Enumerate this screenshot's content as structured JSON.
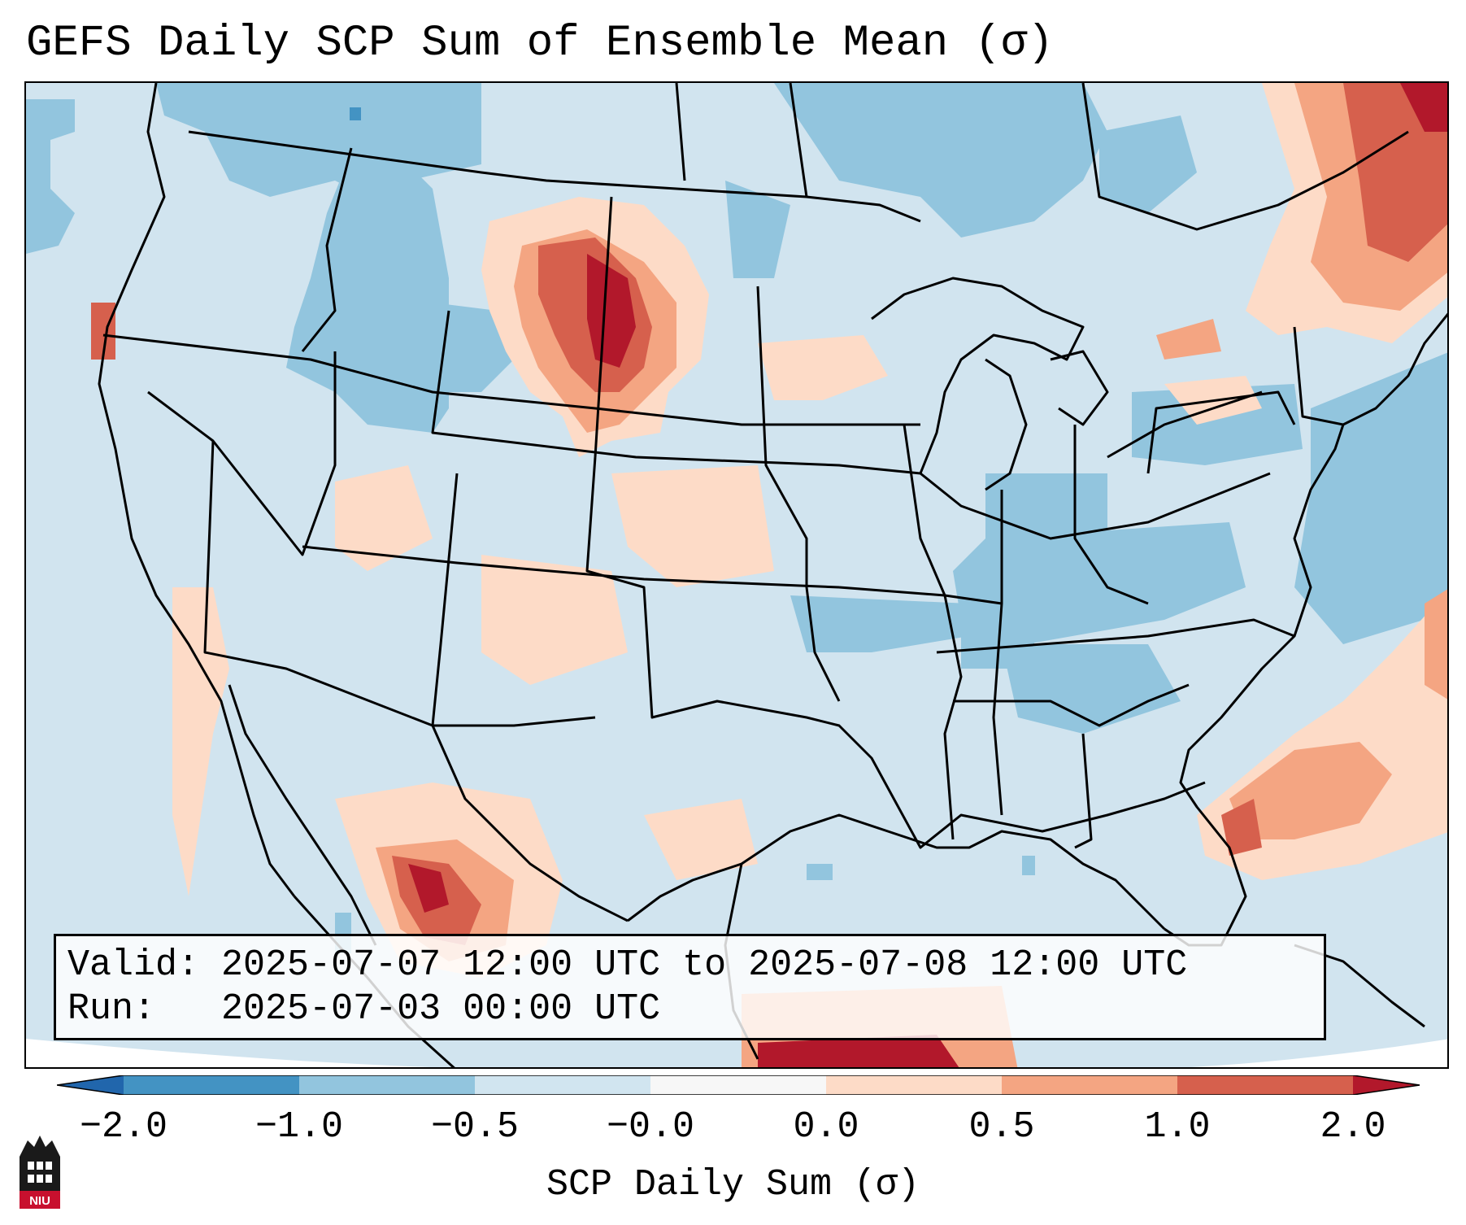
{
  "map": {
    "title": "GEFS Daily SCP Sum of Ensemble Mean (σ)",
    "valid_label": "Valid:",
    "valid_range": "2025-07-07 12:00 UTC to 2025-07-08 12:00 UTC",
    "run_label": "Run:",
    "run_time": "2025-07-03 00:00 UTC",
    "colorbar": {
      "label": "SCP Daily Sum (σ)",
      "ticks": [
        "−2.0",
        "−1.0",
        "−0.5",
        "−0.0",
        "0.0",
        "0.5",
        "1.0",
        "2.0"
      ],
      "bin_colors": [
        "#2166ac",
        "#4393c3",
        "#92c5de",
        "#d1e5f0",
        "#f7f7f7",
        "#fddbc7",
        "#f4a582",
        "#d6604d",
        "#b2182b"
      ]
    },
    "features": [
      {
        "name": "Northern Plains (MT/WY/SD/ND)",
        "anomaly": "high",
        "colors": [
          "#fddbc7",
          "#f4a582",
          "#d6604d",
          "#b2182b"
        ]
      },
      {
        "name": "New England / Quebec",
        "anomaly": "high",
        "colors": [
          "#fddbc7",
          "#f4a582",
          "#d6604d",
          "#b2182b"
        ]
      },
      {
        "name": "Western Atlantic",
        "anomaly": "moderate",
        "colors": [
          "#fddbc7",
          "#f4a582",
          "#d6604d"
        ]
      },
      {
        "name": "Northern Mexico",
        "anomaly": "high",
        "colors": [
          "#fddbc7",
          "#f4a582",
          "#d6604d",
          "#b2182b"
        ]
      },
      {
        "name": "Idaho / Tennessee Valley / Mid-Atlantic",
        "anomaly": "low",
        "colors": [
          "#92c5de"
        ]
      }
    ],
    "logo_text": "NIU"
  }
}
